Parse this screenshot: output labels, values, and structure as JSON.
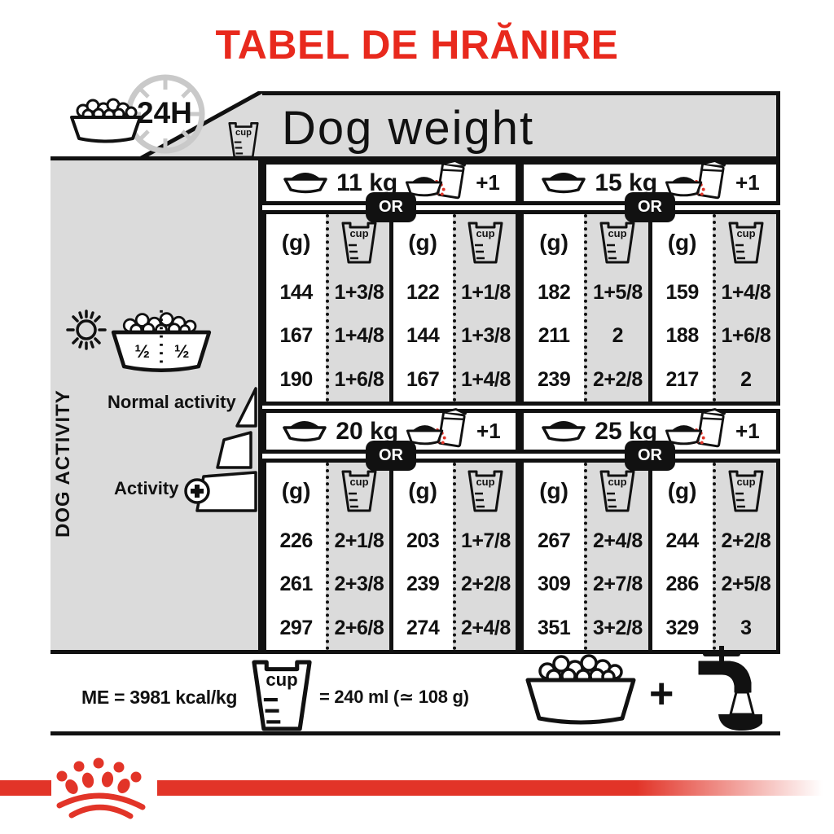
{
  "title": "TABEL DE HRĂNIRE",
  "colors": {
    "title_red": "#E8291D",
    "brand_red": "#E23428",
    "panel_gray": "#DBDBDB",
    "line_black": "#111111"
  },
  "header": {
    "hours_label": "24H",
    "cup_label": "cup",
    "dog_weight_label": "Dog weight"
  },
  "sidebar": {
    "axis_label": "DOG ACTIVITY",
    "half_left": "½",
    "half_right": "½",
    "normal_activity_label": "Normal activity",
    "activity_label": "Activity",
    "activity_plus": "+"
  },
  "table": {
    "col_headers": [
      "(g)",
      "cup",
      "(g)",
      "cup"
    ]
  },
  "weights": [
    {
      "weight": "11 kg",
      "or_label": "OR",
      "plus_one": "+1",
      "rows": [
        [
          "144",
          "1+3/8",
          "122",
          "1+1/8"
        ],
        [
          "167",
          "1+4/8",
          "144",
          "1+3/8"
        ],
        [
          "190",
          "1+6/8",
          "167",
          "1+4/8"
        ]
      ]
    },
    {
      "weight": "15 kg",
      "or_label": "OR",
      "plus_one": "+1",
      "rows": [
        [
          "182",
          "1+5/8",
          "159",
          "1+4/8"
        ],
        [
          "211",
          "2",
          "188",
          "1+6/8"
        ],
        [
          "239",
          "2+2/8",
          "217",
          "2"
        ]
      ]
    },
    {
      "weight": "20 kg",
      "or_label": "OR",
      "plus_one": "+1",
      "rows": [
        [
          "226",
          "2+1/8",
          "203",
          "1+7/8"
        ],
        [
          "261",
          "2+3/8",
          "239",
          "2+2/8"
        ],
        [
          "297",
          "2+6/8",
          "274",
          "2+4/8"
        ]
      ]
    },
    {
      "weight": "25 kg",
      "or_label": "OR",
      "plus_one": "+1",
      "rows": [
        [
          "267",
          "2+4/8",
          "244",
          "2+2/8"
        ],
        [
          "309",
          "2+7/8",
          "286",
          "2+5/8"
        ],
        [
          "351",
          "3+2/8",
          "329",
          "3"
        ]
      ]
    }
  ],
  "footer": {
    "me_label": "ME = 3981 kcal/kg",
    "cup_label": "cup",
    "cup_equiv": "= 240 ml (≃ 108 g)",
    "plus": "+"
  }
}
